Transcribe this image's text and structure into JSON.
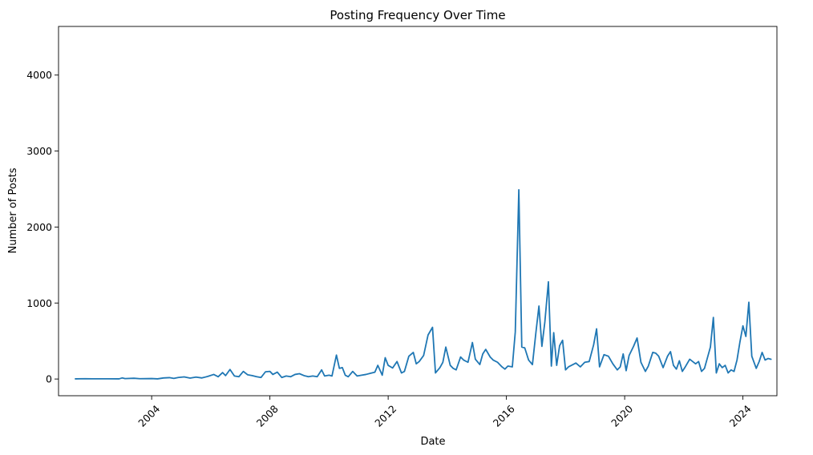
{
  "chart_data": {
    "type": "line",
    "title": "Posting Frequency Over Time",
    "xlabel": "Date",
    "ylabel": "Number of Posts",
    "xlim": [
      2000.85,
      2025.15
    ],
    "ylim": [
      -220,
      4640
    ],
    "x_ticks": [
      2004,
      2008,
      2012,
      2016,
      2020,
      2024
    ],
    "x_tick_labels": [
      "2004",
      "2008",
      "2012",
      "2016",
      "2020",
      "2024"
    ],
    "y_ticks": [
      0,
      1000,
      2000,
      3000,
      4000
    ],
    "y_tick_labels": [
      "0",
      "1000",
      "2000",
      "3000",
      "4000"
    ],
    "grid": false,
    "legend": "none",
    "series": [
      {
        "color": "#1f77b4",
        "points": [
          [
            2001.42,
            2
          ],
          [
            2001.75,
            4
          ],
          [
            2002.0,
            3
          ],
          [
            2002.5,
            3
          ],
          [
            2002.9,
            2
          ],
          [
            2003.0,
            14
          ],
          [
            2003.1,
            5
          ],
          [
            2003.4,
            10
          ],
          [
            2003.6,
            4
          ],
          [
            2004.0,
            6
          ],
          [
            2004.2,
            2
          ],
          [
            2004.4,
            14
          ],
          [
            2004.6,
            18
          ],
          [
            2004.75,
            8
          ],
          [
            2004.9,
            20
          ],
          [
            2005.1,
            28
          ],
          [
            2005.3,
            12
          ],
          [
            2005.5,
            25
          ],
          [
            2005.7,
            14
          ],
          [
            2005.9,
            34
          ],
          [
            2006.1,
            60
          ],
          [
            2006.25,
            30
          ],
          [
            2006.4,
            85
          ],
          [
            2006.5,
            45
          ],
          [
            2006.65,
            125
          ],
          [
            2006.8,
            40
          ],
          [
            2006.95,
            30
          ],
          [
            2007.1,
            100
          ],
          [
            2007.25,
            55
          ],
          [
            2007.4,
            45
          ],
          [
            2007.55,
            30
          ],
          [
            2007.7,
            20
          ],
          [
            2007.85,
            95
          ],
          [
            2008.0,
            100
          ],
          [
            2008.1,
            60
          ],
          [
            2008.25,
            90
          ],
          [
            2008.4,
            20
          ],
          [
            2008.55,
            40
          ],
          [
            2008.7,
            30
          ],
          [
            2008.85,
            60
          ],
          [
            2009.0,
            70
          ],
          [
            2009.15,
            45
          ],
          [
            2009.3,
            30
          ],
          [
            2009.45,
            40
          ],
          [
            2009.6,
            30
          ],
          [
            2009.75,
            120
          ],
          [
            2009.85,
            40
          ],
          [
            2010.0,
            50
          ],
          [
            2010.1,
            40
          ],
          [
            2010.25,
            315
          ],
          [
            2010.35,
            140
          ],
          [
            2010.45,
            150
          ],
          [
            2010.55,
            50
          ],
          [
            2010.65,
            30
          ],
          [
            2010.8,
            100
          ],
          [
            2010.95,
            40
          ],
          [
            2011.1,
            50
          ],
          [
            2011.25,
            60
          ],
          [
            2011.4,
            75
          ],
          [
            2011.55,
            90
          ],
          [
            2011.65,
            180
          ],
          [
            2011.8,
            50
          ],
          [
            2011.9,
            280
          ],
          [
            2012.0,
            180
          ],
          [
            2012.15,
            145
          ],
          [
            2012.3,
            230
          ],
          [
            2012.45,
            80
          ],
          [
            2012.55,
            100
          ],
          [
            2012.7,
            300
          ],
          [
            2012.85,
            350
          ],
          [
            2012.95,
            200
          ],
          [
            2013.05,
            230
          ],
          [
            2013.2,
            310
          ],
          [
            2013.35,
            580
          ],
          [
            2013.5,
            680
          ],
          [
            2013.6,
            80
          ],
          [
            2013.75,
            150
          ],
          [
            2013.85,
            220
          ],
          [
            2013.95,
            420
          ],
          [
            2014.1,
            180
          ],
          [
            2014.2,
            140
          ],
          [
            2014.3,
            120
          ],
          [
            2014.45,
            290
          ],
          [
            2014.55,
            250
          ],
          [
            2014.7,
            220
          ],
          [
            2014.85,
            480
          ],
          [
            2014.95,
            260
          ],
          [
            2015.1,
            190
          ],
          [
            2015.2,
            330
          ],
          [
            2015.3,
            390
          ],
          [
            2015.45,
            290
          ],
          [
            2015.55,
            250
          ],
          [
            2015.7,
            220
          ],
          [
            2015.85,
            160
          ],
          [
            2015.95,
            130
          ],
          [
            2016.05,
            170
          ],
          [
            2016.2,
            160
          ],
          [
            2016.3,
            620
          ],
          [
            2016.42,
            2490
          ],
          [
            2016.52,
            420
          ],
          [
            2016.62,
            410
          ],
          [
            2016.75,
            250
          ],
          [
            2016.88,
            190
          ],
          [
            2017.0,
            620
          ],
          [
            2017.1,
            960
          ],
          [
            2017.2,
            430
          ],
          [
            2017.3,
            750
          ],
          [
            2017.42,
            1280
          ],
          [
            2017.52,
            170
          ],
          [
            2017.6,
            610
          ],
          [
            2017.7,
            180
          ],
          [
            2017.8,
            440
          ],
          [
            2017.9,
            510
          ],
          [
            2018.0,
            120
          ],
          [
            2018.1,
            160
          ],
          [
            2018.2,
            180
          ],
          [
            2018.35,
            210
          ],
          [
            2018.5,
            160
          ],
          [
            2018.65,
            220
          ],
          [
            2018.8,
            230
          ],
          [
            2018.95,
            450
          ],
          [
            2019.05,
            660
          ],
          [
            2019.15,
            160
          ],
          [
            2019.3,
            320
          ],
          [
            2019.45,
            300
          ],
          [
            2019.6,
            200
          ],
          [
            2019.75,
            120
          ],
          [
            2019.85,
            160
          ],
          [
            2019.95,
            330
          ],
          [
            2020.05,
            110
          ],
          [
            2020.15,
            310
          ],
          [
            2020.3,
            430
          ],
          [
            2020.42,
            540
          ],
          [
            2020.55,
            220
          ],
          [
            2020.7,
            100
          ],
          [
            2020.8,
            170
          ],
          [
            2020.95,
            350
          ],
          [
            2021.05,
            340
          ],
          [
            2021.15,
            300
          ],
          [
            2021.3,
            150
          ],
          [
            2021.45,
            300
          ],
          [
            2021.55,
            360
          ],
          [
            2021.65,
            180
          ],
          [
            2021.75,
            130
          ],
          [
            2021.85,
            240
          ],
          [
            2021.95,
            100
          ],
          [
            2022.05,
            160
          ],
          [
            2022.2,
            260
          ],
          [
            2022.3,
            230
          ],
          [
            2022.4,
            200
          ],
          [
            2022.5,
            230
          ],
          [
            2022.6,
            100
          ],
          [
            2022.7,
            140
          ],
          [
            2022.8,
            280
          ],
          [
            2022.9,
            420
          ],
          [
            2023.0,
            810
          ],
          [
            2023.1,
            80
          ],
          [
            2023.2,
            200
          ],
          [
            2023.3,
            150
          ],
          [
            2023.4,
            180
          ],
          [
            2023.5,
            80
          ],
          [
            2023.6,
            120
          ],
          [
            2023.7,
            100
          ],
          [
            2023.8,
            250
          ],
          [
            2023.9,
            490
          ],
          [
            2024.0,
            700
          ],
          [
            2024.1,
            560
          ],
          [
            2024.2,
            1010
          ],
          [
            2024.3,
            300
          ],
          [
            2024.45,
            140
          ],
          [
            2024.55,
            230
          ],
          [
            2024.65,
            350
          ],
          [
            2024.75,
            250
          ],
          [
            2024.85,
            270
          ],
          [
            2024.95,
            260
          ]
        ]
      }
    ]
  }
}
